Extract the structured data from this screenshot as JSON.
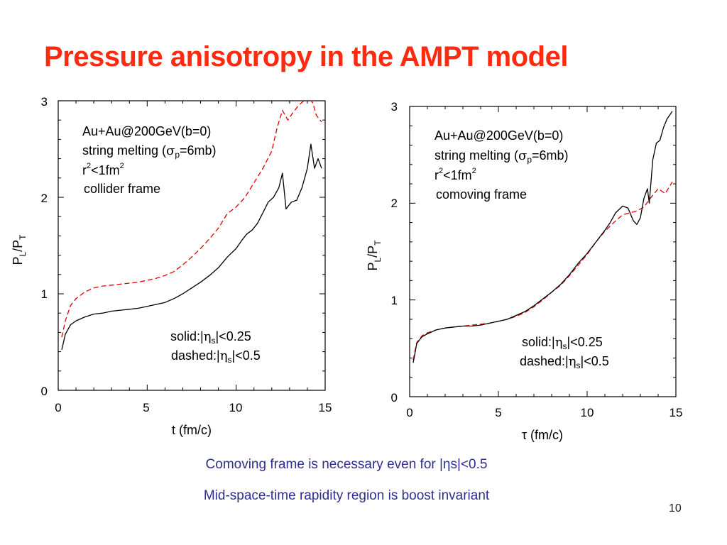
{
  "slide": {
    "title": "Pressure anisotropy in the AMPT model",
    "caption_lines": [
      "Comoving frame is necessary even for |ηs|<0.5",
      "Mid-space-time rapidity region is boost invariant"
    ],
    "page_number": "10",
    "colors": {
      "title": "#ff2a0f",
      "caption": "#2e2e8f",
      "solid_series": "#000000",
      "dashed_series": "#e00000"
    }
  },
  "chart_data": [
    {
      "type": "line",
      "xlabel": "t (fm/c)",
      "ylabel_main": "P",
      "ylabel_sub1": "L",
      "ylabel_sep": "/P",
      "ylabel_sub2": "T",
      "xlim": [
        0,
        15
      ],
      "ylim": [
        0,
        3
      ],
      "x_ticks": [
        "0",
        "5",
        "10",
        "15"
      ],
      "y_ticks": [
        "0",
        "1",
        "2",
        "3"
      ],
      "annotations": {
        "system": "Au+Au@200GeV(b=0)",
        "melting_prefix": "string melting (",
        "sigma": "σ",
        "sigma_sub": "p",
        "melting_suffix": "=6mb)",
        "radius_r": "r",
        "radius_exp": "2",
        "radius_mid": "<1fm",
        "radius_exp2": "2",
        "frame": "collider frame",
        "legend_solid_prefix": "solid:|",
        "legend_dashed_prefix": "dashed:|",
        "eta": "η",
        "eta_sub": "s",
        "legend_solid_suffix": "|<0.25",
        "legend_dashed_suffix": "|<0.5"
      },
      "series": [
        {
          "style": "solid",
          "color": "#000000",
          "points": [
            [
              0.2,
              0.42
            ],
            [
              0.4,
              0.58
            ],
            [
              0.7,
              0.68
            ],
            [
              1,
              0.72
            ],
            [
              1.5,
              0.76
            ],
            [
              2,
              0.79
            ],
            [
              2.5,
              0.8
            ],
            [
              3,
              0.82
            ],
            [
              3.5,
              0.83
            ],
            [
              4,
              0.84
            ],
            [
              4.5,
              0.85
            ],
            [
              5,
              0.87
            ],
            [
              5.5,
              0.89
            ],
            [
              6,
              0.91
            ],
            [
              6.5,
              0.95
            ],
            [
              7,
              1.0
            ],
            [
              7.5,
              1.06
            ],
            [
              8,
              1.12
            ],
            [
              8.5,
              1.19
            ],
            [
              9,
              1.27
            ],
            [
              9.5,
              1.38
            ],
            [
              10,
              1.47
            ],
            [
              10.3,
              1.55
            ],
            [
              10.6,
              1.62
            ],
            [
              10.9,
              1.66
            ],
            [
              11.2,
              1.73
            ],
            [
              11.5,
              1.84
            ],
            [
              11.8,
              1.95
            ],
            [
              12.1,
              2.0
            ],
            [
              12.4,
              2.1
            ],
            [
              12.6,
              2.25
            ],
            [
              12.8,
              1.88
            ],
            [
              13.1,
              1.95
            ],
            [
              13.4,
              1.97
            ],
            [
              13.7,
              2.1
            ],
            [
              14.0,
              2.3
            ],
            [
              14.2,
              2.55
            ],
            [
              14.4,
              2.3
            ],
            [
              14.6,
              2.4
            ],
            [
              14.8,
              2.3
            ]
          ]
        },
        {
          "style": "dashed",
          "color": "#e00000",
          "points": [
            [
              0.2,
              0.55
            ],
            [
              0.4,
              0.72
            ],
            [
              0.7,
              0.88
            ],
            [
              1,
              0.95
            ],
            [
              1.5,
              1.02
            ],
            [
              2,
              1.06
            ],
            [
              2.5,
              1.08
            ],
            [
              3,
              1.09
            ],
            [
              3.5,
              1.1
            ],
            [
              4,
              1.11
            ],
            [
              4.5,
              1.12
            ],
            [
              5,
              1.14
            ],
            [
              5.5,
              1.16
            ],
            [
              6,
              1.19
            ],
            [
              6.5,
              1.23
            ],
            [
              7,
              1.3
            ],
            [
              7.5,
              1.38
            ],
            [
              8,
              1.47
            ],
            [
              8.5,
              1.57
            ],
            [
              9,
              1.68
            ],
            [
              9.5,
              1.83
            ],
            [
              10,
              1.9
            ],
            [
              10.5,
              2.0
            ],
            [
              11,
              2.15
            ],
            [
              11.5,
              2.3
            ],
            [
              12,
              2.48
            ],
            [
              12.3,
              2.72
            ],
            [
              12.6,
              2.9
            ],
            [
              12.9,
              2.8
            ],
            [
              13.2,
              2.88
            ],
            [
              13.5,
              2.95
            ],
            [
              13.8,
              3.0
            ],
            [
              14.0,
              3.05
            ],
            [
              14.3,
              2.98
            ],
            [
              14.5,
              2.85
            ],
            [
              14.8,
              2.78
            ]
          ]
        }
      ]
    },
    {
      "type": "line",
      "xlabel": "τ (fm/c)",
      "ylabel_main": "P",
      "ylabel_sub1": "L",
      "ylabel_sep": "/P",
      "ylabel_sub2": "T",
      "xlim": [
        0,
        15
      ],
      "ylim": [
        0,
        3
      ],
      "x_ticks": [
        "0",
        "5",
        "10",
        "15"
      ],
      "y_ticks": [
        "0",
        "1",
        "2",
        "3"
      ],
      "annotations": {
        "system": "Au+Au@200GeV(b=0)",
        "melting_prefix": "string melting (",
        "sigma": "σ",
        "sigma_sub": "p",
        "melting_suffix": "=6mb)",
        "radius_r": "r",
        "radius_exp": "2",
        "radius_mid": "<1fm",
        "radius_exp2": "2",
        "frame": "comoving frame",
        "legend_solid_prefix": "solid:|",
        "legend_dashed_prefix": "dashed:|",
        "eta": "η",
        "eta_sub": "s",
        "legend_solid_suffix": "|<0.25",
        "legend_dashed_suffix": "|<0.5"
      },
      "series": [
        {
          "style": "solid",
          "color": "#000000",
          "points": [
            [
              0.2,
              0.35
            ],
            [
              0.4,
              0.55
            ],
            [
              0.7,
              0.62
            ],
            [
              1,
              0.65
            ],
            [
              1.5,
              0.69
            ],
            [
              2,
              0.71
            ],
            [
              2.5,
              0.72
            ],
            [
              3,
              0.73
            ],
            [
              3.5,
              0.73
            ],
            [
              4,
              0.74
            ],
            [
              4.5,
              0.76
            ],
            [
              5,
              0.78
            ],
            [
              5.5,
              0.8
            ],
            [
              6,
              0.84
            ],
            [
              6.5,
              0.88
            ],
            [
              7,
              0.94
            ],
            [
              7.5,
              1.01
            ],
            [
              8,
              1.08
            ],
            [
              8.5,
              1.16
            ],
            [
              9,
              1.26
            ],
            [
              9.5,
              1.38
            ],
            [
              10,
              1.48
            ],
            [
              10.5,
              1.6
            ],
            [
              11,
              1.72
            ],
            [
              11.3,
              1.8
            ],
            [
              11.6,
              1.9
            ],
            [
              12,
              1.97
            ],
            [
              12.3,
              1.95
            ],
            [
              12.6,
              1.82
            ],
            [
              12.8,
              1.78
            ],
            [
              13.0,
              1.85
            ],
            [
              13.2,
              2.05
            ],
            [
              13.4,
              2.15
            ],
            [
              13.5,
              2.0
            ],
            [
              13.7,
              2.45
            ],
            [
              13.9,
              2.62
            ],
            [
              14.1,
              2.65
            ],
            [
              14.3,
              2.78
            ],
            [
              14.5,
              2.87
            ],
            [
              14.8,
              2.95
            ]
          ]
        },
        {
          "style": "dashed",
          "color": "#e00000",
          "points": [
            [
              0.2,
              0.38
            ],
            [
              0.4,
              0.56
            ],
            [
              0.7,
              0.63
            ],
            [
              1,
              0.66
            ],
            [
              1.5,
              0.69
            ],
            [
              2,
              0.71
            ],
            [
              2.5,
              0.72
            ],
            [
              3,
              0.73
            ],
            [
              3.5,
              0.74
            ],
            [
              4,
              0.75
            ],
            [
              4.5,
              0.76
            ],
            [
              5,
              0.78
            ],
            [
              5.5,
              0.8
            ],
            [
              6,
              0.83
            ],
            [
              6.5,
              0.87
            ],
            [
              7,
              0.93
            ],
            [
              7.5,
              1.0
            ],
            [
              8,
              1.08
            ],
            [
              8.5,
              1.15
            ],
            [
              9,
              1.25
            ],
            [
              9.5,
              1.36
            ],
            [
              10,
              1.47
            ],
            [
              10.5,
              1.6
            ],
            [
              11,
              1.71
            ],
            [
              11.5,
              1.8
            ],
            [
              12,
              1.88
            ],
            [
              12.4,
              1.9
            ],
            [
              12.8,
              1.92
            ],
            [
              13.2,
              1.96
            ],
            [
              13.6,
              2.06
            ],
            [
              14,
              2.15
            ],
            [
              14.4,
              2.1
            ],
            [
              14.8,
              2.22
            ]
          ]
        }
      ]
    }
  ]
}
